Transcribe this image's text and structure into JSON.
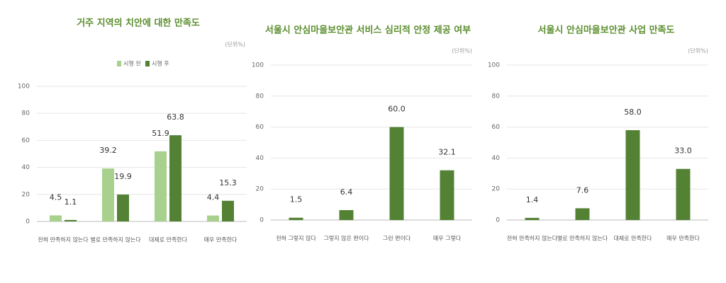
{
  "chart_data": [
    {
      "type": "bar",
      "title": "거주 지역의 치안에 대한 만족도",
      "unit": "(단위%)",
      "categories": [
        "전혀 만족하지 않는다",
        "별로 만족하지 않는다",
        "대체로 만족한다",
        "매우 만족한다"
      ],
      "series": [
        {
          "name": "시행 전",
          "color": "#a9d18e",
          "values": [
            4.5,
            39.2,
            51.9,
            4.4
          ]
        },
        {
          "name": "시행 후",
          "color": "#548235",
          "values": [
            1.1,
            19.9,
            63.8,
            15.3
          ]
        }
      ],
      "ylim": [
        0,
        100
      ],
      "yticks": [
        0,
        20,
        40,
        60,
        80,
        100
      ],
      "grid": true,
      "legend": "top"
    },
    {
      "type": "bar",
      "title": "서울시 안심마을보안관 서비스 심리적 안정 제공 여부",
      "unit": "(단위%)",
      "categories": [
        "전혀 그렇지 않다",
        "그렇지 않은 편이다",
        "그런 편이다",
        "매우 그렇다"
      ],
      "series": [
        {
          "color": "#548235",
          "values": [
            1.5,
            6.4,
            60.0,
            32.1
          ],
          "value_labels": [
            "1.5",
            "6.4",
            "60.0",
            "32.1"
          ]
        }
      ],
      "ylim": [
        0,
        100
      ],
      "yticks": [
        0,
        20,
        40,
        60,
        80,
        100
      ],
      "grid": true
    },
    {
      "type": "bar",
      "title": "서울시 안심마을보안관 사업 만족도",
      "unit": "(단위%)",
      "categories": [
        "전혀 만족하지 않는다",
        "별로 만족하지 않는다",
        "대체로 만족한다",
        "매우 만족한다"
      ],
      "series": [
        {
          "color": "#548235",
          "values": [
            1.4,
            7.6,
            58.0,
            33.0
          ],
          "value_labels": [
            "1.4",
            "7.6",
            "58.0",
            "33.0"
          ]
        }
      ],
      "ylim": [
        0,
        100
      ],
      "yticks": [
        0,
        20,
        40,
        60,
        80,
        100
      ],
      "grid": true
    }
  ]
}
